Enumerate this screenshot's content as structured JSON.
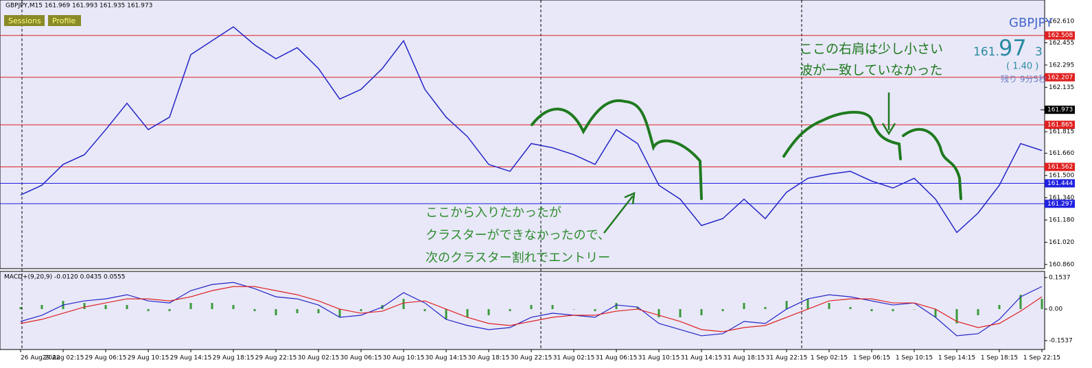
{
  "header": {
    "title": "GBPJPY,M15  161.969 161.993 161.935 161.973",
    "buttons": [
      "Sessions",
      "Profile"
    ],
    "symbol": "GBPJPY",
    "price_parts": [
      "161.",
      "97",
      "3"
    ],
    "spread": "( 1.40 )",
    "timer": "残り 9分5秒"
  },
  "chart_data": [
    {
      "type": "line",
      "annotations": [
        "ここの右肩は少し小さい",
        "波が一致していなかった",
        "ここから入りたかったが",
        "クラスターができなかったので、",
        "次のクラスター割れでエントリー"
      ],
      "categories": [
        "26 Aug 2022",
        null,
        "29 Aug 02:15",
        null,
        "29 Aug 06:15",
        null,
        "29 Aug 10:15",
        null,
        "29 Aug 14:15",
        null,
        "29 Aug 18:15",
        null,
        "29 Aug 22:15",
        null,
        "30 Aug 02:15",
        null,
        "30 Aug 06:15",
        null,
        "30 Aug 10:15",
        null,
        "30 Aug 14:15",
        null,
        "30 Aug 18:15",
        null,
        "30 Aug 22:15",
        null,
        "31 Aug 02:15",
        null,
        "31 Aug 06:15",
        null,
        "31 Aug 10:15",
        null,
        "31 Aug 14:15",
        null,
        "31 Aug 18:15",
        null,
        "31 Aug 22:15",
        null,
        "1 Sep 02:15",
        null,
        "1 Sep 06:15",
        null,
        "1 Sep 10:15",
        null,
        "1 Sep 14:15",
        null,
        "1 Sep 18:15",
        null,
        "1 Sep 22:15"
      ],
      "series": [
        {
          "color": "#2323c8",
          "values": [
            161.36,
            161.43,
            161.58,
            161.65,
            161.83,
            162.02,
            161.83,
            161.92,
            162.37,
            162.47,
            162.57,
            162.44,
            162.34,
            162.42,
            162.27,
            162.05,
            162.12,
            162.27,
            162.47,
            162.12,
            161.92,
            161.78,
            161.58,
            161.53,
            161.73,
            161.7,
            161.65,
            161.58,
            161.83,
            161.73,
            161.43,
            161.33,
            161.14,
            161.19,
            161.33,
            161.19,
            161.38,
            161.48,
            161.51,
            161.53,
            161.46,
            161.41,
            161.48,
            161.33,
            161.09,
            161.23,
            161.43,
            161.73,
            161.68
          ]
        }
      ],
      "levels": [
        {
          "value": 162.508,
          "color": "#e02020"
        },
        {
          "value": 162.207,
          "color": "#e02020"
        },
        {
          "value": 161.865,
          "color": "#e02020"
        },
        {
          "value": 161.562,
          "color": "#e02020"
        },
        {
          "value": 161.444,
          "color": "#2020e0"
        },
        {
          "value": 161.297,
          "color": "#2020e0"
        }
      ],
      "current_price": 161.973,
      "ylim": [
        160.83,
        162.763
      ],
      "yticks": [
        {
          "value": 162.61,
          "label": "162.610"
        },
        162.455,
        162.295,
        162.135,
        161.815,
        {
          "value": 161.66,
          "label": "161.660"
        },
        {
          "value": 161.5,
          "label": "161.500"
        },
        {
          "value": 161.34,
          "label": "161.340"
        },
        {
          "value": 161.18,
          "label": "161.180"
        },
        {
          "value": 161.02,
          "label": "161.020"
        },
        {
          "value": 160.86,
          "label": "160.860"
        }
      ],
      "grid": false
    },
    {
      "type": "macd",
      "title": "MACD+(9,20,9) -0.0120 0.0435 0.0555",
      "series": [
        {
          "color": "#2323c8",
          "values": [
            -0.06,
            -0.03,
            0.02,
            0.04,
            0.05,
            0.07,
            0.04,
            0.03,
            0.09,
            0.12,
            0.13,
            0.1,
            0.06,
            0.05,
            0.02,
            -0.04,
            -0.03,
            0.01,
            0.08,
            0.03,
            -0.05,
            -0.08,
            -0.1,
            -0.09,
            -0.04,
            -0.02,
            -0.03,
            -0.04,
            0.02,
            0.01,
            -0.07,
            -0.1,
            -0.13,
            -0.12,
            -0.06,
            -0.07,
            0,
            0.05,
            0.07,
            0.06,
            0.04,
            0.02,
            0.03,
            -0.04,
            -0.13,
            -0.12,
            -0.05,
            0.06,
            0.11
          ]
        },
        {
          "color": "#e02020",
          "values": [
            -0.07,
            -0.05,
            -0.02,
            0.01,
            0.03,
            0.05,
            0.05,
            0.04,
            0.06,
            0.09,
            0.11,
            0.11,
            0.09,
            0.07,
            0.04,
            0,
            -0.02,
            -0.01,
            0.03,
            0.04,
            0,
            -0.04,
            -0.07,
            -0.08,
            -0.06,
            -0.04,
            -0.03,
            -0.03,
            -0.01,
            0,
            -0.03,
            -0.06,
            -0.1,
            -0.11,
            -0.09,
            -0.08,
            -0.04,
            0,
            0.04,
            0.05,
            0.05,
            0.03,
            0.03,
            0,
            -0.06,
            -0.09,
            -0.07,
            -0.01,
            0.06
          ]
        }
      ],
      "histogram": {
        "color": "#3a9a3a",
        "values": [
          0.01,
          0.02,
          0.04,
          0.03,
          0.02,
          0.02,
          -0.01,
          -0.01,
          0.03,
          0.03,
          0.02,
          -0.01,
          -0.03,
          -0.02,
          -0.02,
          -0.04,
          -0.01,
          0.02,
          0.05,
          -0.01,
          -0.05,
          -0.04,
          -0.03,
          -0.01,
          0.02,
          0.02,
          0,
          -0.01,
          0.03,
          0.01,
          -0.04,
          -0.04,
          -0.03,
          -0.01,
          0.03,
          0.01,
          0.04,
          0.05,
          0.03,
          0.01,
          -0.01,
          -0.01,
          0,
          -0.04,
          -0.07,
          -0.03,
          0.02,
          0.07,
          0.05
        ]
      },
      "ylim": [
        -0.197,
        0.184
      ],
      "yticks": [
        0.1537,
        {
          "value": 0,
          "label": "0.00"
        },
        -0.1537
      ]
    }
  ]
}
